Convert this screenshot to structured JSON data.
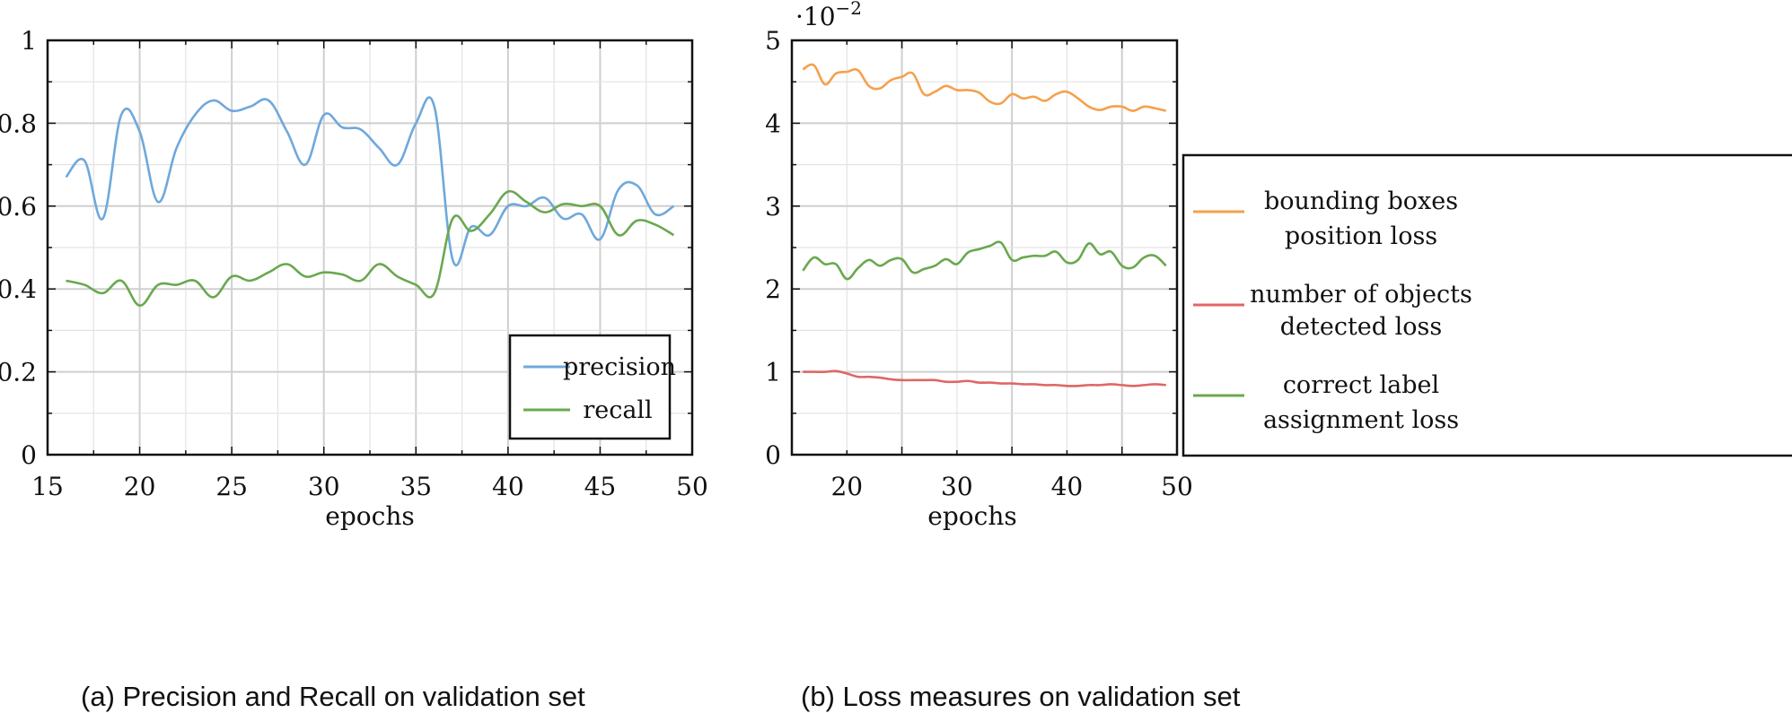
{
  "chart_data": [
    {
      "type": "line",
      "xlabel": "epochs",
      "caption": "(a) Precision and Recall on validation set",
      "xlim": [
        15,
        50
      ],
      "ylim": [
        0,
        1
      ],
      "xticks": [
        "15",
        "20",
        "25",
        "30",
        "35",
        "40",
        "45",
        "50"
      ],
      "yticks": [
        "0",
        "0.2",
        "0.4",
        "0.6",
        "0.8",
        "1"
      ],
      "grid": true,
      "legend_position": "bottom-right",
      "series": [
        {
          "name": "precision",
          "color": "#6fa8dc",
          "x": [
            16,
            17,
            18,
            19,
            20,
            21,
            22,
            23,
            24,
            25,
            26,
            27,
            28,
            29,
            30,
            31,
            32,
            33,
            34,
            35,
            36,
            37,
            38,
            39,
            40,
            41,
            42,
            43,
            44,
            45,
            46,
            47,
            48,
            49
          ],
          "y": [
            0.67,
            0.71,
            0.57,
            0.82,
            0.78,
            0.61,
            0.74,
            0.82,
            0.855,
            0.83,
            0.84,
            0.855,
            0.78,
            0.7,
            0.82,
            0.79,
            0.785,
            0.74,
            0.7,
            0.8,
            0.84,
            0.47,
            0.55,
            0.53,
            0.6,
            0.6,
            0.62,
            0.57,
            0.58,
            0.52,
            0.64,
            0.65,
            0.58,
            0.6
          ]
        },
        {
          "name": "recall",
          "color": "#6aa84f",
          "x": [
            16,
            17,
            18,
            19,
            20,
            21,
            22,
            23,
            24,
            25,
            26,
            27,
            28,
            29,
            30,
            31,
            32,
            33,
            34,
            35,
            36,
            37,
            38,
            39,
            40,
            41,
            42,
            43,
            44,
            45,
            46,
            47,
            48,
            49
          ],
          "y": [
            0.42,
            0.41,
            0.39,
            0.42,
            0.36,
            0.41,
            0.41,
            0.42,
            0.38,
            0.43,
            0.42,
            0.44,
            0.46,
            0.43,
            0.44,
            0.435,
            0.42,
            0.46,
            0.43,
            0.41,
            0.39,
            0.57,
            0.54,
            0.58,
            0.635,
            0.61,
            0.585,
            0.605,
            0.6,
            0.6,
            0.53,
            0.565,
            0.555,
            0.53
          ]
        }
      ]
    },
    {
      "type": "line",
      "xlabel": "epochs",
      "caption": "(b) Loss measures on validation set",
      "multiplier_label": "·10",
      "multiplier_exponent": "−2",
      "xlim": [
        15,
        50
      ],
      "ylim": [
        0,
        5
      ],
      "xticks": [
        "20",
        "30",
        "40",
        "50"
      ],
      "yticks": [
        "0",
        "1",
        "2",
        "3",
        "4",
        "5"
      ],
      "grid": true,
      "legend_position": "right-outside",
      "series": [
        {
          "name": "bounding boxes position loss",
          "legend_lines": [
            "bounding boxes",
            "position loss"
          ],
          "color": "#f6a04d",
          "x": [
            16,
            17,
            18,
            19,
            20,
            21,
            22,
            23,
            24,
            25,
            26,
            27,
            28,
            29,
            30,
            31,
            32,
            33,
            34,
            35,
            36,
            37,
            38,
            39,
            40,
            41,
            42,
            43,
            44,
            45,
            46,
            47,
            48,
            49
          ],
          "y": [
            4.65,
            4.7,
            4.47,
            4.6,
            4.62,
            4.64,
            4.45,
            4.42,
            4.52,
            4.56,
            4.6,
            4.35,
            4.38,
            4.45,
            4.4,
            4.4,
            4.37,
            4.26,
            4.24,
            4.35,
            4.3,
            4.32,
            4.27,
            4.35,
            4.38,
            4.3,
            4.2,
            4.16,
            4.2,
            4.2,
            4.15,
            4.2,
            4.18,
            4.15
          ]
        },
        {
          "name": "number of objects detected loss",
          "legend_lines": [
            "number of objects",
            "detected loss"
          ],
          "color": "#e06666",
          "x": [
            16,
            17,
            18,
            19,
            20,
            21,
            22,
            23,
            24,
            25,
            26,
            27,
            28,
            29,
            30,
            31,
            32,
            33,
            34,
            35,
            36,
            37,
            38,
            39,
            40,
            41,
            42,
            43,
            44,
            45,
            46,
            47,
            48,
            49
          ],
          "y": [
            1.0,
            1.0,
            1.0,
            1.01,
            0.98,
            0.94,
            0.94,
            0.93,
            0.91,
            0.9,
            0.9,
            0.9,
            0.9,
            0.88,
            0.88,
            0.89,
            0.87,
            0.87,
            0.86,
            0.86,
            0.85,
            0.85,
            0.84,
            0.84,
            0.83,
            0.83,
            0.84,
            0.84,
            0.85,
            0.84,
            0.83,
            0.84,
            0.85,
            0.84
          ]
        },
        {
          "name": "correct label assignment loss",
          "legend_lines": [
            "correct label",
            "assignment loss"
          ],
          "color": "#6aa84f",
          "x": [
            16,
            17,
            18,
            19,
            20,
            21,
            22,
            23,
            24,
            25,
            26,
            27,
            28,
            29,
            30,
            31,
            32,
            33,
            34,
            35,
            36,
            37,
            38,
            39,
            40,
            41,
            42,
            43,
            44,
            45,
            46,
            47,
            48,
            49
          ],
          "y": [
            2.22,
            2.38,
            2.3,
            2.3,
            2.12,
            2.25,
            2.35,
            2.28,
            2.35,
            2.36,
            2.2,
            2.24,
            2.28,
            2.36,
            2.3,
            2.44,
            2.48,
            2.52,
            2.56,
            2.35,
            2.38,
            2.4,
            2.4,
            2.45,
            2.32,
            2.35,
            2.55,
            2.42,
            2.45,
            2.28,
            2.26,
            2.38,
            2.4,
            2.28
          ]
        }
      ]
    }
  ]
}
